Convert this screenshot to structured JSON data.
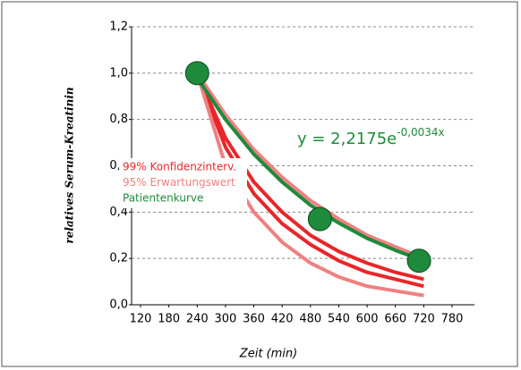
{
  "chart_data": {
    "type": "line",
    "y_label": "relatives Serum-Kreatinin",
    "x_label": "Zeit (min)",
    "equation": {
      "base": "y = 2,2175e",
      "exponent": "-0,0034x"
    },
    "xlim": [
      120,
      780
    ],
    "xticks": [
      120,
      180,
      240,
      300,
      360,
      420,
      480,
      540,
      600,
      660,
      720,
      780
    ],
    "ylim": [
      0,
      1.2
    ],
    "yticks": [
      {
        "value": 0,
        "label": "0,0"
      },
      {
        "value": 0.2,
        "label": "0,2"
      },
      {
        "value": 0.4,
        "label": "0,4"
      },
      {
        "value": 0.6,
        "label": "0,6"
      },
      {
        "value": 0.8,
        "label": "0,8"
      },
      {
        "value": 1.0,
        "label": "1,0"
      },
      {
        "value": 1.2,
        "label": "1,2"
      }
    ],
    "grid": true,
    "legend": "left",
    "x": [
      240,
      300,
      360,
      420,
      480,
      540,
      600,
      660,
      720
    ],
    "series": [
      {
        "name": "99% Konfidenzinterv.",
        "color": "#e8262a",
        "lines": [
          [
            1.0,
            0.72,
            0.53,
            0.4,
            0.3,
            0.23,
            0.18,
            0.14,
            0.11
          ],
          [
            1.0,
            0.68,
            0.48,
            0.35,
            0.26,
            0.19,
            0.14,
            0.11,
            0.08
          ]
        ]
      },
      {
        "name": "95% Erwartungswert",
        "color": "#f08080",
        "lines": [
          [
            1.0,
            0.82,
            0.67,
            0.55,
            0.45,
            0.37,
            0.3,
            0.25,
            0.2
          ],
          [
            1.0,
            0.6,
            0.4,
            0.27,
            0.18,
            0.12,
            0.08,
            0.06,
            0.04
          ]
        ]
      },
      {
        "name": "Patientenkurve",
        "color": "#1e8a3c",
        "lines": [
          [
            0.98,
            0.8,
            0.65,
            0.53,
            0.43,
            0.353,
            0.287,
            0.235,
            0.19
          ]
        ]
      }
    ],
    "points": {
      "color": "#1e8a3c",
      "x": [
        240,
        500,
        710
      ],
      "values": [
        1.0,
        0.37,
        0.19
      ]
    }
  }
}
